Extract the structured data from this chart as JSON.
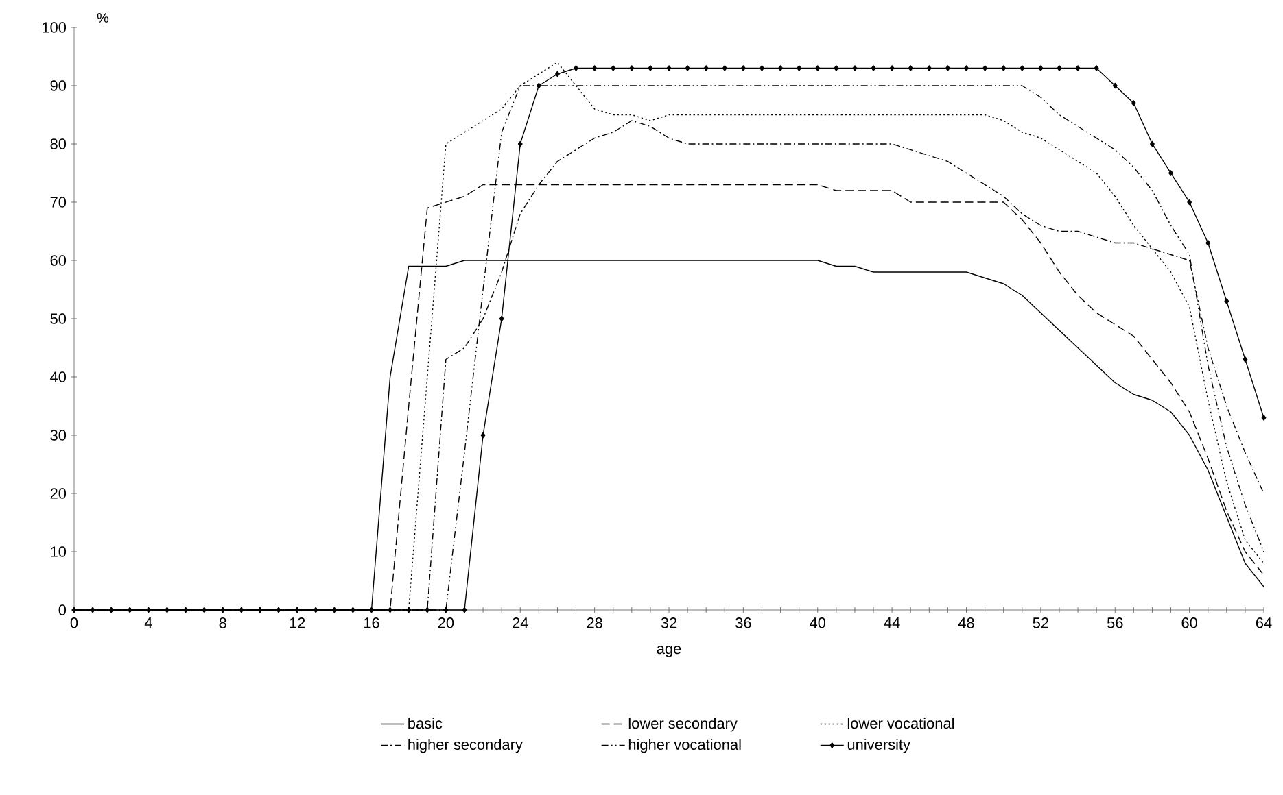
{
  "chart_data": {
    "type": "line",
    "xlabel": "age",
    "ylabel": "%",
    "x": [
      0,
      1,
      2,
      3,
      4,
      5,
      6,
      7,
      8,
      9,
      10,
      11,
      12,
      13,
      14,
      15,
      16,
      17,
      18,
      19,
      20,
      21,
      22,
      23,
      24,
      25,
      26,
      27,
      28,
      29,
      30,
      31,
      32,
      33,
      34,
      35,
      36,
      37,
      38,
      39,
      40,
      41,
      42,
      43,
      44,
      45,
      46,
      47,
      48,
      49,
      50,
      51,
      52,
      53,
      54,
      55,
      56,
      57,
      58,
      59,
      60,
      61,
      62,
      63,
      64
    ],
    "series": [
      {
        "name": "basic",
        "color": "#000000",
        "line_style": "solid",
        "marker": "none",
        "values": [
          0,
          0,
          0,
          0,
          0,
          0,
          0,
          0,
          0,
          0,
          0,
          0,
          0,
          0,
          0,
          0,
          0,
          40,
          59,
          59,
          59,
          60,
          60,
          60,
          60,
          60,
          60,
          60,
          60,
          60,
          60,
          60,
          60,
          60,
          60,
          60,
          60,
          60,
          60,
          60,
          60,
          59,
          59,
          58,
          58,
          58,
          58,
          58,
          58,
          57,
          56,
          54,
          51,
          48,
          45,
          42,
          39,
          37,
          36,
          34,
          30,
          24,
          16,
          8,
          4
        ]
      },
      {
        "name": "lower secondary",
        "color": "#000000",
        "line_style": "dashed",
        "marker": "none",
        "values": [
          0,
          0,
          0,
          0,
          0,
          0,
          0,
          0,
          0,
          0,
          0,
          0,
          0,
          0,
          0,
          0,
          0,
          0,
          35,
          69,
          70,
          71,
          73,
          73,
          73,
          73,
          73,
          73,
          73,
          73,
          73,
          73,
          73,
          73,
          73,
          73,
          73,
          73,
          73,
          73,
          73,
          72,
          72,
          72,
          72,
          70,
          70,
          70,
          70,
          70,
          70,
          67,
          63,
          58,
          54,
          51,
          49,
          47,
          43,
          39,
          34,
          26,
          17,
          10,
          6
        ]
      },
      {
        "name": "lower vocational",
        "color": "#000000",
        "line_style": "dotted",
        "marker": "none",
        "values": [
          0,
          0,
          0,
          0,
          0,
          0,
          0,
          0,
          0,
          0,
          0,
          0,
          0,
          0,
          0,
          0,
          0,
          0,
          0,
          40,
          80,
          82,
          84,
          86,
          90,
          92,
          94,
          90,
          86,
          85,
          85,
          84,
          85,
          85,
          85,
          85,
          85,
          85,
          85,
          85,
          85,
          85,
          85,
          85,
          85,
          85,
          85,
          85,
          85,
          85,
          84,
          82,
          81,
          79,
          77,
          75,
          71,
          66,
          62,
          58,
          52,
          36,
          22,
          12,
          8
        ]
      },
      {
        "name": "higher secondary",
        "color": "#000000",
        "line_style": "dashdot",
        "marker": "none",
        "values": [
          0,
          0,
          0,
          0,
          0,
          0,
          0,
          0,
          0,
          0,
          0,
          0,
          0,
          0,
          0,
          0,
          0,
          0,
          0,
          0,
          43,
          45,
          50,
          58,
          68,
          73,
          77,
          79,
          81,
          82,
          84,
          83,
          81,
          80,
          80,
          80,
          80,
          80,
          80,
          80,
          80,
          80,
          80,
          80,
          80,
          79,
          78,
          77,
          75,
          73,
          71,
          68,
          66,
          65,
          65,
          64,
          63,
          63,
          62,
          61,
          60,
          45,
          35,
          27,
          20
        ]
      },
      {
        "name": "higher vocational",
        "color": "#000000",
        "line_style": "dashdotdot",
        "marker": "none",
        "values": [
          0,
          0,
          0,
          0,
          0,
          0,
          0,
          0,
          0,
          0,
          0,
          0,
          0,
          0,
          0,
          0,
          0,
          0,
          0,
          0,
          0,
          27,
          55,
          82,
          90,
          90,
          90,
          90,
          90,
          90,
          90,
          90,
          90,
          90,
          90,
          90,
          90,
          90,
          90,
          90,
          90,
          90,
          90,
          90,
          90,
          90,
          90,
          90,
          90,
          90,
          90,
          90,
          88,
          85,
          83,
          81,
          79,
          76,
          72,
          66,
          61,
          42,
          28,
          18,
          10
        ]
      },
      {
        "name": "university",
        "color": "#000000",
        "line_style": "solid",
        "marker": "diamond",
        "values": [
          0,
          0,
          0,
          0,
          0,
          0,
          0,
          0,
          0,
          0,
          0,
          0,
          0,
          0,
          0,
          0,
          0,
          0,
          0,
          0,
          0,
          0,
          30,
          50,
          80,
          90,
          92,
          93,
          93,
          93,
          93,
          93,
          93,
          93,
          93,
          93,
          93,
          93,
          93,
          93,
          93,
          93,
          93,
          93,
          93,
          93,
          93,
          93,
          93,
          93,
          93,
          93,
          93,
          93,
          93,
          93,
          90,
          87,
          80,
          75,
          70,
          63,
          53,
          43,
          33
        ]
      }
    ],
    "xlim": [
      0,
      64
    ],
    "ylim": [
      0,
      100
    ],
    "xticks": [
      0,
      4,
      8,
      12,
      16,
      20,
      24,
      28,
      32,
      36,
      40,
      44,
      48,
      52,
      56,
      60,
      64
    ],
    "yticks": [
      0,
      10,
      20,
      30,
      40,
      50,
      60,
      70,
      80,
      90,
      100
    ],
    "legend": "bottom",
    "grid": false
  }
}
